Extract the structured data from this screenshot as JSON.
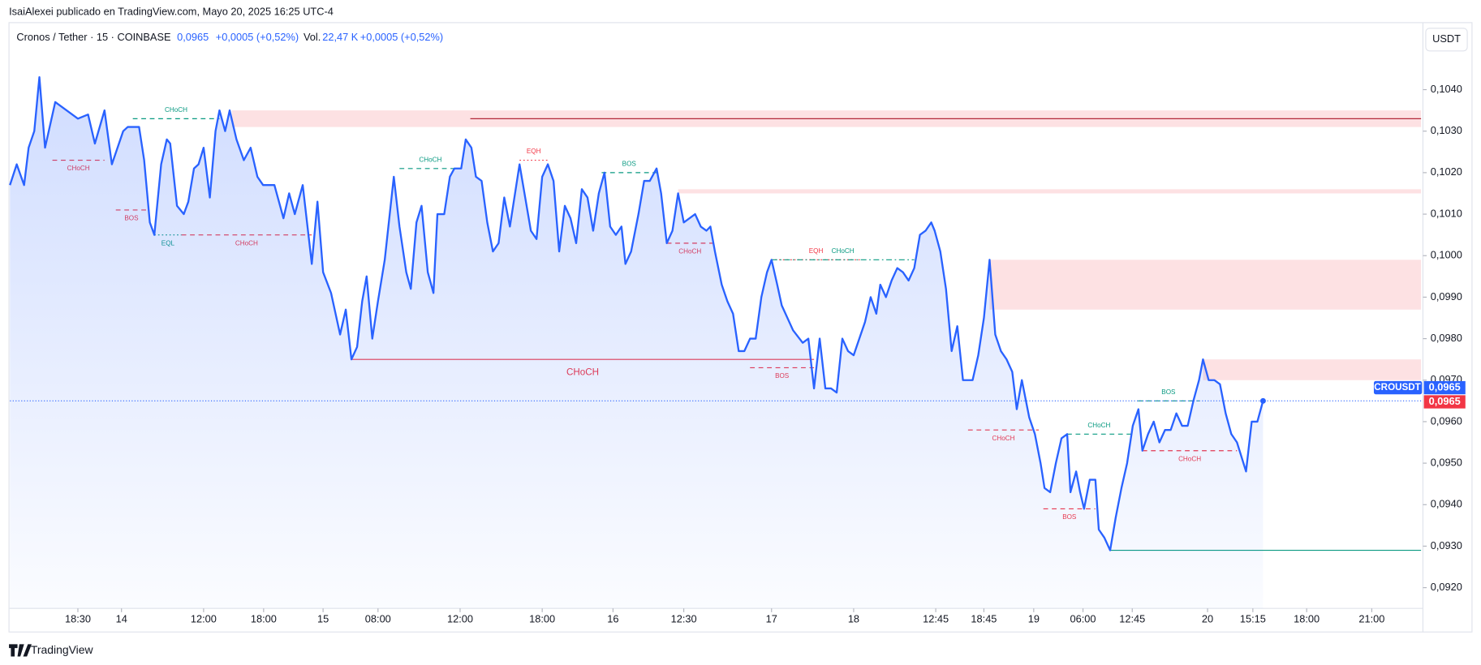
{
  "header": {
    "author": "IsaiAlexei publicado en TradingView.com, Mayo 20, 2025 16:25 UTC-4",
    "symbol": "Cronos / Tether · 15 · COINBASE",
    "price": "0,0965",
    "change": "+0,0005 (+0,52%)",
    "volume_label": "Vol.",
    "volume": "22,47 K",
    "volume_change": "+0,0005 (+0,52%)",
    "currency": "USDT"
  },
  "footer": {
    "brand": "TradingView"
  },
  "chart_data": {
    "type": "line",
    "symbol": "CROUSDT",
    "color": "#2962ff",
    "area": true,
    "x": [
      0,
      1.2,
      2.5,
      3.3,
      4.3,
      5.2,
      6.2,
      8,
      10,
      12,
      13.8,
      15,
      16.7,
      18,
      20,
      20.8,
      22.8,
      23.7,
      24.7,
      25.5,
      26.7,
      27.7,
      28.3,
      29.5,
      30.7,
      31.5,
      32.5,
      33.3,
      34.2,
      35.3,
      36.3,
      37,
      38,
      38.8,
      40,
      41.3,
      42.5,
      43.7,
      44.7,
      46.7,
      48.3,
      49.3,
      50.3,
      51.7,
      53.3,
      54.3,
      55.3,
      56.7,
      58.3,
      59.3,
      60.3,
      61.3,
      62.2,
      63,
      64,
      65,
      66.2,
      67.8,
      68.8,
      70,
      70.8,
      71.8,
      72.7,
      73.8,
      74.8,
      75.5,
      76.7,
      77.7,
      78.5,
      79.7,
      80.5,
      81.5,
      82.3,
      83.3,
      84.3,
      85.3,
      86.3,
      87.3,
      88.3,
      90,
      91,
      92,
      93,
      94,
      95,
      96,
      97,
      98,
      99,
      100,
      101,
      102,
      103,
      104,
      105,
      106,
      107,
      108,
      108.7,
      109.7,
      111,
      112,
      113,
      114.2,
      115,
      116,
      117,
      118,
      119,
      120,
      121,
      122,
      123,
      123.7,
      124.5,
      125.7,
      126.7,
      127.7,
      128.7,
      129.7,
      130.7,
      131.7,
      132.7,
      133.7,
      134.5,
      135.5,
      136.3,
      138.3,
      140,
      141,
      142,
      143,
      144,
      145,
      146,
      147,
      148,
      149,
      150,
      151,
      152,
      153,
      153.7,
      154.7,
      155.7,
      156.7,
      157.7,
      158.7,
      159.7,
      160.7,
      161.7,
      162.7,
      163.3,
      164.3,
      165.3,
      166.3,
      167.3,
      168.3,
      170,
      171,
      172,
      173,
      174,
      175,
      176,
      177,
      177.8,
      178.7,
      180,
      181,
      182,
      182.7,
      183.7,
      184.7,
      185.7,
      186.7,
      187.3,
      188.3,
      189,
      189.7,
      190.7,
      191.7,
      192.3,
      193.3,
      194.3,
      195.3,
      196.3,
      197.3,
      198.3,
      199.3,
      200,
      201,
      202,
      203,
      204,
      205,
      206,
      207,
      208,
      209,
      210,
      210.7,
      211.7,
      212.7,
      213.7,
      214.7,
      215.7,
      216.7,
      218.3,
      219.3,
      220.3,
      221.3
    ],
    "values": [
      0.1017,
      0.1022,
      0.1017,
      0.1026,
      0.103,
      0.1043,
      0.1026,
      0.1037,
      0.1035,
      0.1033,
      0.1034,
      0.1027,
      0.1035,
      0.1022,
      0.103,
      0.1031,
      0.1031,
      0.1023,
      0.1008,
      0.1005,
      0.1022,
      0.1028,
      0.1027,
      0.1012,
      0.101,
      0.1013,
      0.1021,
      0.1022,
      0.1026,
      0.1014,
      0.103,
      0.1035,
      0.103,
      0.1035,
      0.1028,
      0.1023,
      0.1026,
      0.1019,
      0.1017,
      0.1017,
      0.1009,
      0.1015,
      0.101,
      0.1017,
      0.0998,
      0.1013,
      0.0996,
      0.0991,
      0.0981,
      0.0987,
      0.0975,
      0.0978,
      0.0989,
      0.0995,
      0.098,
      0.0989,
      0.0999,
      0.1019,
      0.1007,
      0.0996,
      0.0992,
      0.1008,
      0.1012,
      0.0996,
      0.0991,
      0.101,
      0.101,
      0.1019,
      0.1021,
      0.1021,
      0.1028,
      0.1026,
      0.1019,
      0.1018,
      0.1008,
      0.1001,
      0.1003,
      0.1014,
      0.1007,
      0.1022,
      0.1014,
      0.1006,
      0.1004,
      0.1019,
      0.1022,
      0.1018,
      0.1001,
      0.1012,
      0.1009,
      0.1003,
      0.1016,
      0.1014,
      0.1006,
      0.1015,
      0.102,
      0.1007,
      0.1005,
      0.1007,
      0.0998,
      0.1001,
      0.101,
      0.1018,
      0.1018,
      0.1021,
      0.1015,
      0.1003,
      0.1006,
      0.1015,
      0.1008,
      0.1009,
      0.101,
      0.1007,
      0.1006,
      0.1007,
      0.1001,
      0.0993,
      0.0989,
      0.0986,
      0.0977,
      0.0977,
      0.098,
      0.098,
      0.099,
      0.0996,
      0.0999,
      0.0993,
      0.0988,
      0.0982,
      0.0979,
      0.098,
      0.0968,
      0.098,
      0.0968,
      0.0968,
      0.0967,
      0.098,
      0.0977,
      0.0976,
      0.098,
      0.0984,
      0.099,
      0.0986,
      0.0993,
      0.099,
      0.0994,
      0.0997,
      0.0996,
      0.0994,
      0.0997,
      0.1005,
      0.1006,
      0.1008,
      0.1006,
      0.1001,
      0.0992,
      0.0977,
      0.0983,
      0.097,
      0.097,
      0.0976,
      0.0985,
      0.0999,
      0.0981,
      0.0977,
      0.0975,
      0.0972,
      0.0963,
      0.097,
      0.0961,
      0.0957,
      0.095,
      0.0944,
      0.0943,
      0.095,
      0.0956,
      0.0957,
      0.0943,
      0.0948,
      0.0943,
      0.0939,
      0.0946,
      0.0946,
      0.0934,
      0.0932,
      0.0929,
      0.0937,
      0.0944,
      0.095,
      0.0959,
      0.0963,
      0.0953,
      0.0957,
      0.096,
      0.0955,
      0.0958,
      0.0958,
      0.0962,
      0.0959,
      0.0959,
      0.0965,
      0.097,
      0.0975,
      0.097,
      0.097,
      0.0969,
      0.0962,
      0.0957,
      0.0955,
      0.0948,
      0.096,
      0.096,
      0.0965
    ],
    "xlim": [
      0,
      249.2
    ],
    "ylim": [
      0.0915,
      0.10491
    ],
    "xticks": [
      {
        "value": 12,
        "label": "18:30"
      },
      {
        "value": 19.7,
        "label": "14"
      },
      {
        "value": 34.2,
        "label": "12:00"
      },
      {
        "value": 44.8,
        "label": "18:00"
      },
      {
        "value": 55.3,
        "label": "15"
      },
      {
        "value": 65,
        "label": "08:00"
      },
      {
        "value": 79.5,
        "label": "12:00"
      },
      {
        "value": 94,
        "label": "18:00"
      },
      {
        "value": 106.5,
        "label": "16"
      },
      {
        "value": 119,
        "label": "12:30"
      },
      {
        "value": 134.5,
        "label": "17"
      },
      {
        "value": 149,
        "label": "18"
      },
      {
        "value": 163.5,
        "label": "12:45"
      },
      {
        "value": 172,
        "label": "18:45"
      },
      {
        "value": 180.8,
        "label": "19"
      },
      {
        "value": 189.5,
        "label": "06:00"
      },
      {
        "value": 198.2,
        "label": "12:45"
      },
      {
        "value": 211.5,
        "label": "20"
      },
      {
        "value": 219.5,
        "label": "15:15"
      },
      {
        "value": 229,
        "label": "18:00"
      },
      {
        "value": 240.5,
        "label": "21:00"
      }
    ],
    "yticks": [
      {
        "value": 0.092,
        "label": "0,0920"
      },
      {
        "value": 0.093,
        "label": "0,0930"
      },
      {
        "value": 0.094,
        "label": "0,0940"
      },
      {
        "value": 0.095,
        "label": "0,0950"
      },
      {
        "value": 0.096,
        "label": "0,0960"
      },
      {
        "value": 0.097,
        "label": "0,0970"
      },
      {
        "value": 0.098,
        "label": "0,0980"
      },
      {
        "value": 0.099,
        "label": "0,0990"
      },
      {
        "value": 0.1,
        "label": "0,1000"
      },
      {
        "value": 0.101,
        "label": "0,1010"
      },
      {
        "value": 0.102,
        "label": "0,1020"
      },
      {
        "value": 0.103,
        "label": "0,1030"
      },
      {
        "value": 0.104,
        "label": "0,1040"
      }
    ],
    "last_price": {
      "value": 0.0965,
      "label": "0,0965"
    },
    "zones": [
      {
        "x": [
          39.2,
          249.2
        ],
        "y": [
          0.1031,
          0.1035
        ]
      },
      {
        "x": [
          118,
          249.2
        ],
        "y": [
          0.1015,
          0.1016
        ]
      },
      {
        "x": [
          173,
          249.2
        ],
        "y": [
          0.0987,
          0.0999
        ]
      },
      {
        "x": [
          210.7,
          249.2
        ],
        "y": [
          0.097,
          0.0975
        ]
      }
    ],
    "levels": [
      {
        "label": "CHoCH",
        "x": [
          21.7,
          37
        ],
        "y": 0.1033,
        "color": "#089981",
        "style": "dash",
        "pos": "above"
      },
      {
        "label": "CHoCH",
        "x": [
          7.5,
          16.7
        ],
        "y": 0.1023,
        "color": "#f23645",
        "style": "dash",
        "pos": "below"
      },
      {
        "label": "BOS",
        "x": [
          18.7,
          24.2
        ],
        "y": 0.1011,
        "color": "#f23645",
        "style": "dash",
        "pos": "below"
      },
      {
        "label": "EQL",
        "x": [
          25.5,
          30.3
        ],
        "y": 0.1005,
        "color": "#089981",
        "style": "dot",
        "pos": "below"
      },
      {
        "label": "CHoCH",
        "x": [
          30.3,
          53.3
        ],
        "y": 0.1005,
        "color": "#f23645",
        "style": "dash",
        "pos": "below"
      },
      {
        "label": "CHoCH",
        "x": [
          68.8,
          79.7
        ],
        "y": 0.1021,
        "color": "#089981",
        "style": "dash",
        "pos": "above"
      },
      {
        "label": "EQH",
        "x": [
          90,
          95
        ],
        "y": 0.1023,
        "color": "#f23645",
        "style": "dot",
        "pos": "above"
      },
      {
        "label": "BOS",
        "x": [
          104.5,
          114.2
        ],
        "y": 0.102,
        "color": "#089981",
        "style": "dash",
        "pos": "above"
      },
      {
        "label": "CHoCH",
        "x": [
          116,
          124.2
        ],
        "y": 0.1003,
        "color": "#f23645",
        "style": "dash",
        "pos": "below"
      },
      {
        "label": "CHoCH",
        "x": [
          60.3,
          142
        ],
        "y": 0.0975,
        "color": "#f23645",
        "style": "solid",
        "pos": "below",
        "big": true
      },
      {
        "label": "BOS",
        "x": [
          130.7,
          142
        ],
        "y": 0.0973,
        "color": "#f23645",
        "style": "dash",
        "pos": "below"
      },
      {
        "label": "EQH",
        "x": [
          134.5,
          150.2
        ],
        "y": 0.0999,
        "color": "#f23645",
        "style": "dot",
        "pos": "above"
      },
      {
        "label": "CHoCH",
        "x": [
          134.5,
          159.7
        ],
        "y": 0.0999,
        "color": "#089981",
        "style": "dashdot",
        "pos": "above"
      },
      {
        "label": "CHoCH",
        "x": [
          169.2,
          181.7
        ],
        "y": 0.0958,
        "color": "#f23645",
        "style": "dash",
        "pos": "below"
      },
      {
        "label": "CHoCH",
        "x": [
          186.7,
          198
        ],
        "y": 0.0957,
        "color": "#089981",
        "style": "dash",
        "pos": "above"
      },
      {
        "label": "BOS",
        "x": [
          182.5,
          191.7
        ],
        "y": 0.0939,
        "color": "#f23645",
        "style": "dash",
        "pos": "below"
      },
      {
        "label": "BOS",
        "x": [
          199.2,
          210
        ],
        "y": 0.0965,
        "color": "#089981",
        "style": "dash",
        "pos": "above"
      },
      {
        "label": "CHoCH",
        "x": [
          200,
          216.7
        ],
        "y": 0.0953,
        "color": "#f23645",
        "style": "dash",
        "pos": "below"
      },
      {
        "x": [
          194.3,
          249.2
        ],
        "y": 0.0929,
        "color": "#089981",
        "style": "solid"
      },
      {
        "x": [
          81.3,
          249.2
        ],
        "y": 0.1033,
        "color": "#b2283a",
        "style": "solid"
      }
    ]
  }
}
